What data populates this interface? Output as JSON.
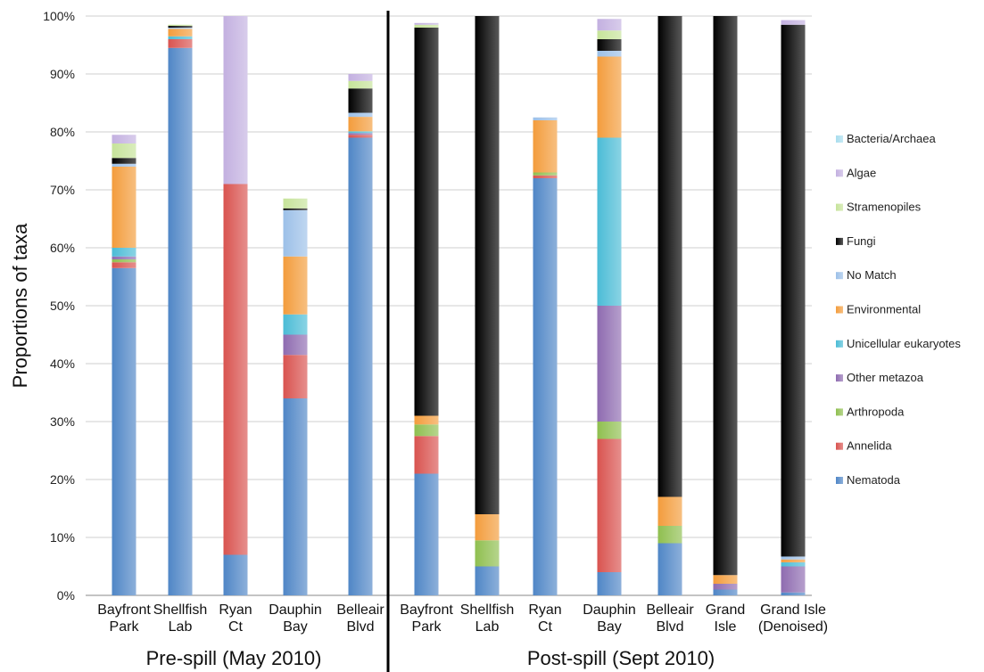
{
  "chart_data": {
    "type": "bar",
    "stacked": true,
    "ylabel": "Proportions of taxa",
    "ylim": [
      0,
      100
    ],
    "yticks": [
      "0%",
      "10%",
      "20%",
      "30%",
      "40%",
      "50%",
      "60%",
      "70%",
      "80%",
      "90%",
      "100%"
    ],
    "grid": true,
    "legend_position": "right",
    "groups": [
      {
        "label": "Pre-spill (May 2010)",
        "categories": [
          "Bayfront Park",
          "Shellfish Lab",
          "Ryan Ct",
          "Dauphin Bay",
          "Belleair Blvd"
        ]
      },
      {
        "label": "Post-spill (Sept 2010)",
        "categories": [
          "Bayfront Park",
          "Shellfish Lab",
          "Ryan Ct",
          "Dauphin Bay",
          "Belleair Blvd",
          "Grand Isle",
          "Grand Isle (Denoised)"
        ]
      }
    ],
    "categories": [
      [
        "Bayfront",
        "Park"
      ],
      [
        "Shellfish",
        "Lab"
      ],
      [
        "Ryan",
        "Ct"
      ],
      [
        "Dauphin",
        "Bay"
      ],
      [
        "Belleair",
        "Blvd"
      ],
      [
        "Bayfront",
        "Park"
      ],
      [
        "Shellfish",
        "Lab"
      ],
      [
        "Ryan",
        "Ct"
      ],
      [
        "Dauphin",
        "Bay"
      ],
      [
        "Belleair",
        "Blvd"
      ],
      [
        "Grand",
        "Isle"
      ],
      [
        "Grand Isle",
        "(Denoised)"
      ]
    ],
    "series": [
      {
        "name": "Nematoda",
        "color": "#4f86c6",
        "values": [
          56.5,
          94.5,
          7,
          34,
          79,
          21,
          5,
          72,
          4,
          9,
          1,
          0.5
        ]
      },
      {
        "name": "Annelida",
        "color": "#d9534f",
        "values": [
          1,
          1.5,
          64,
          7.5,
          0.5,
          6.5,
          0,
          0.5,
          23,
          0,
          0,
          0
        ]
      },
      {
        "name": "Arthropoda",
        "color": "#8fbf4f",
        "values": [
          0.5,
          0,
          0,
          0,
          0,
          2,
          4.5,
          0.5,
          3,
          3,
          0,
          0
        ]
      },
      {
        "name": "Other metazoa",
        "color": "#8e6bb0",
        "values": [
          0.5,
          0,
          0,
          3.5,
          0.3,
          0,
          0,
          0,
          20,
          0,
          1,
          4.5
        ]
      },
      {
        "name": "Unicellular eukaryotes",
        "color": "#4bbcd6",
        "values": [
          1.5,
          0.5,
          0,
          3.5,
          0.3,
          0,
          0,
          0,
          29,
          0,
          0,
          0.7
        ]
      },
      {
        "name": "Environmental",
        "color": "#f39c3c",
        "values": [
          14,
          1.3,
          0,
          10,
          2.5,
          1.5,
          4.5,
          9,
          14,
          5,
          1.5,
          0.5
        ]
      },
      {
        "name": "No Match",
        "color": "#9cc0e8",
        "values": [
          0.5,
          0.2,
          0,
          8,
          0.7,
          0,
          0,
          0.5,
          1,
          0,
          0,
          0.5
        ]
      },
      {
        "name": "Fungi",
        "color": "#000000",
        "values": [
          1,
          0.3,
          0,
          0.3,
          4.2,
          67,
          86,
          0,
          2,
          83,
          96.5,
          91.8
        ]
      },
      {
        "name": "Stramenopiles",
        "color": "#c6e39a",
        "values": [
          2.5,
          0.2,
          0,
          1.7,
          1.3,
          0.5,
          0,
          0,
          1.5,
          0,
          0,
          0
        ]
      },
      {
        "name": "Algae",
        "color": "#c3b0e0",
        "values": [
          1.5,
          0,
          29,
          0,
          1.2,
          0.3,
          0,
          0,
          2,
          0,
          0,
          0.8
        ]
      },
      {
        "name": "Bacteria/Archaea",
        "color": "#a8ddee",
        "values": [
          0,
          0,
          0,
          0,
          0,
          0,
          0,
          0,
          0,
          0,
          0,
          0
        ]
      }
    ]
  }
}
